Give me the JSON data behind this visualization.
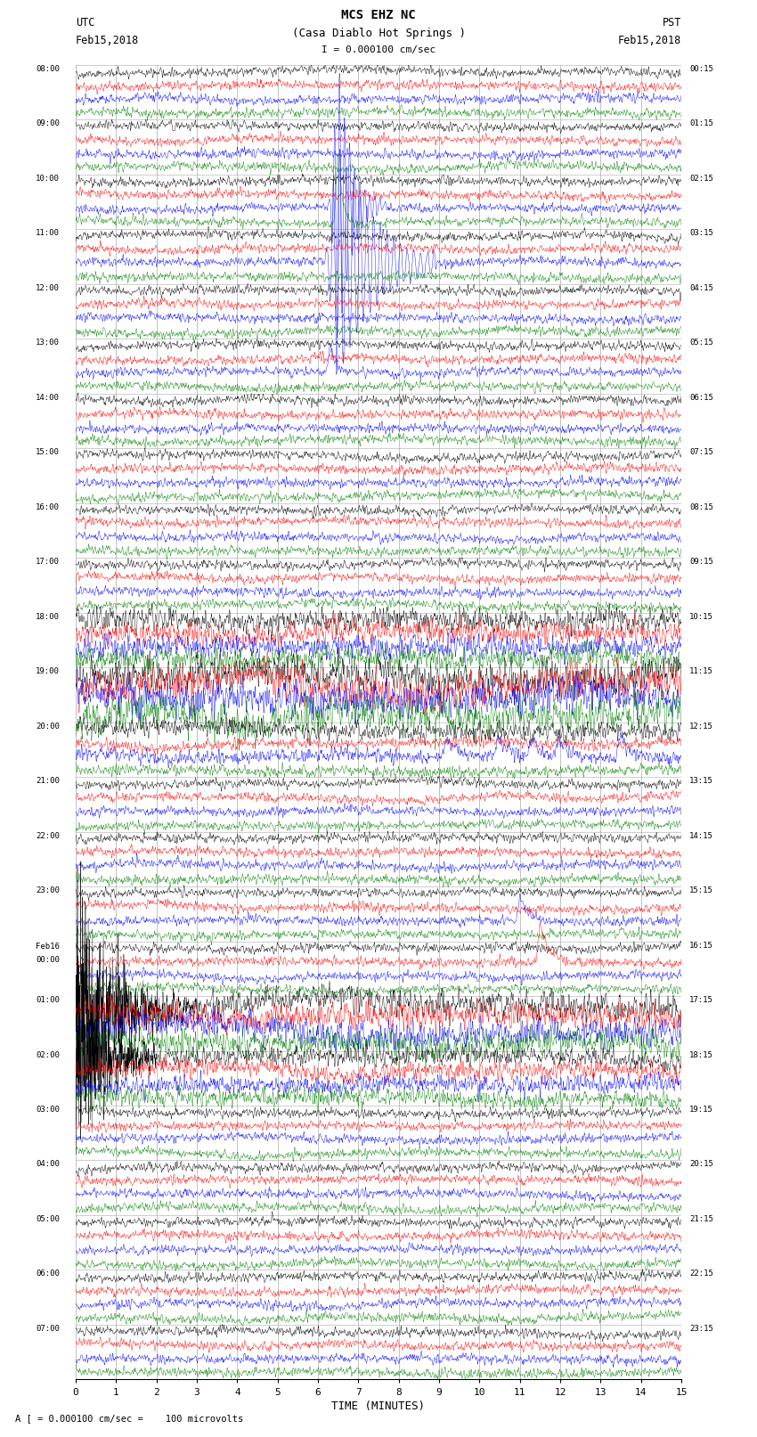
{
  "title_line1": "MCS EHZ NC",
  "title_line2": "(Casa Diablo Hot Springs )",
  "scale_label": "I = 0.000100 cm/sec",
  "bottom_label": "A [ = 0.000100 cm/sec =    100 microvolts",
  "xlabel": "TIME (MINUTES)",
  "left_header_line1": "UTC",
  "left_header_line2": "Feb15,2018",
  "right_header_line1": "PST",
  "right_header_line2": "Feb15,2018",
  "num_hours": 24,
  "traces_per_hour": 4,
  "colors": [
    "black",
    "red",
    "blue",
    "green"
  ],
  "x_min": 0,
  "x_max": 15,
  "x_ticks": [
    0,
    1,
    2,
    3,
    4,
    5,
    6,
    7,
    8,
    9,
    10,
    11,
    12,
    13,
    14,
    15
  ],
  "background_color": "white",
  "grid_color": "#aaaaaa",
  "left_times": [
    "08:00",
    "09:00",
    "10:00",
    "11:00",
    "12:00",
    "13:00",
    "14:00",
    "15:00",
    "16:00",
    "17:00",
    "18:00",
    "19:00",
    "20:00",
    "21:00",
    "22:00",
    "23:00",
    "Feb16\n00:00",
    "01:00",
    "02:00",
    "03:00",
    "04:00",
    "05:00",
    "06:00",
    "07:00"
  ],
  "right_times": [
    "00:15",
    "01:15",
    "02:15",
    "03:15",
    "04:15",
    "05:15",
    "06:15",
    "07:15",
    "08:15",
    "09:15",
    "10:15",
    "11:15",
    "12:15",
    "13:15",
    "14:15",
    "15:15",
    "16:15",
    "17:15",
    "18:15",
    "19:15",
    "20:15",
    "21:15",
    "22:15",
    "23:15"
  ],
  "noise_seed": 42,
  "fig_width": 8.5,
  "fig_height": 16.13
}
